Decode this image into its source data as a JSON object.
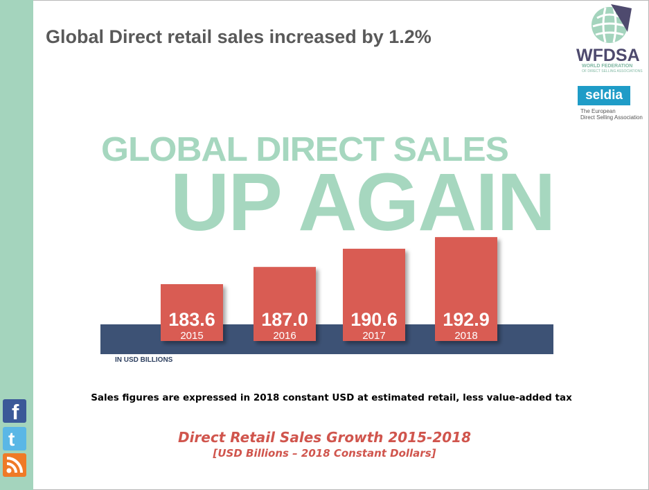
{
  "title": "Global Direct retail sales increased by 1.2%",
  "logo_wfdsa": {
    "name": "WFDSA",
    "line1": "WORLD FEDERATION",
    "line2": "OF DIRECT SELLING ASSOCIATIONS"
  },
  "logo_seldia": {
    "name": "seldia",
    "line1": "The European",
    "line2": "Direct Selling Association"
  },
  "headline": {
    "line1": "GLOBAL DIRECT SALES",
    "line2": "UP AGAIN"
  },
  "chart_data": {
    "type": "bar",
    "categories": [
      "2015",
      "2016",
      "2017",
      "2018"
    ],
    "values": [
      183.6,
      187.0,
      190.6,
      192.9
    ],
    "value_labels": [
      "183.6",
      "187.0",
      "190.6",
      "192.9"
    ],
    "unit_label": "IN USD BILLIONS",
    "title": "",
    "xlabel": "",
    "ylabel": "",
    "grid": false,
    "colors": {
      "bar": "#d95c53",
      "base_band": "#3d5275",
      "text": "#ffffff"
    }
  },
  "note": "Sales figures are expressed in 2018 constant USD at estimated retail, less value-added tax",
  "caption": {
    "line1": "Direct Retail Sales Growth 2015-2018",
    "line2": "[USD Billions – 2018 Constant Dollars]"
  },
  "social_icons": [
    "facebook-icon",
    "twitter-icon",
    "rss-icon"
  ],
  "colors": {
    "accent_green": "#a6d7bf",
    "left_bar": "#a4d4bd",
    "caption_red": "#d0554d",
    "title_gray": "#595959"
  }
}
